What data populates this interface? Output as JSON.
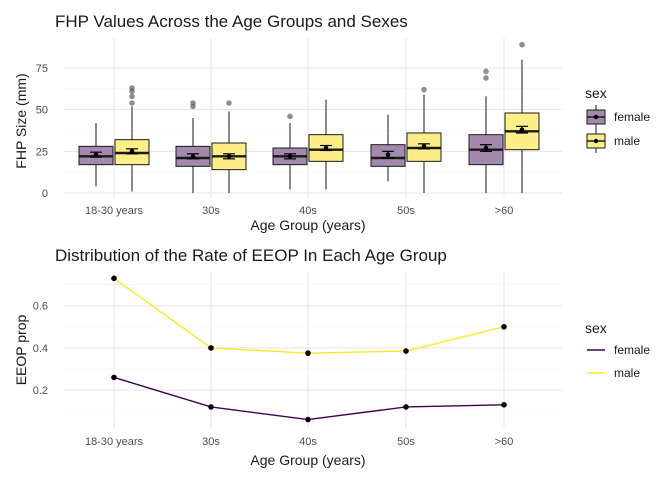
{
  "chart_data": [
    {
      "type": "box",
      "title": "FHP Values Across the Age Groups and Sexes",
      "xlabel": "Age Group (years)",
      "ylabel": "FHP Size (mm)",
      "categories": [
        "18-30 years",
        "30s",
        "40s",
        "50s",
        ">60"
      ],
      "yticks": [
        0,
        25,
        50,
        75
      ],
      "ylim": [
        -3,
        93
      ],
      "legend": {
        "title": "sex",
        "position": "right"
      },
      "series": [
        {
          "name": "female",
          "color": "#a389ae",
          "boxes": [
            {
              "min": 4,
              "q1": 17,
              "median": 22,
              "q3": 28,
              "max": 42,
              "mean": 23,
              "err": 1.5,
              "outliers": []
            },
            {
              "min": 0,
              "q1": 16,
              "median": 21,
              "q3": 28,
              "max": 45,
              "mean": 22,
              "err": 1.5,
              "outliers": [
                52,
                54
              ]
            },
            {
              "min": 2,
              "q1": 17,
              "median": 22,
              "q3": 27,
              "max": 42,
              "mean": 22,
              "err": 1.5,
              "outliers": [
                46
              ]
            },
            {
              "min": 7,
              "q1": 16,
              "median": 21,
              "q3": 29,
              "max": 47,
              "mean": 23,
              "err": 2,
              "outliers": []
            },
            {
              "min": 0,
              "q1": 17,
              "median": 26,
              "q3": 35,
              "max": 58,
              "mean": 27,
              "err": 2,
              "outliers": [
                69,
                73
              ]
            }
          ]
        },
        {
          "name": "male",
          "color": "#fdee88",
          "boxes": [
            {
              "min": 1,
              "q1": 17,
              "median": 24,
              "q3": 32,
              "max": 52,
              "mean": 25,
              "err": 1.5,
              "outliers": [
                54,
                58,
                61,
                63
              ]
            },
            {
              "min": 0,
              "q1": 14,
              "median": 22,
              "q3": 30,
              "max": 49,
              "mean": 22,
              "err": 1.5,
              "outliers": [
                54
              ]
            },
            {
              "min": 2,
              "q1": 19,
              "median": 26,
              "q3": 35,
              "max": 56,
              "mean": 27,
              "err": 1.5,
              "outliers": []
            },
            {
              "min": 0,
              "q1": 19,
              "median": 27,
              "q3": 36,
              "max": 59,
              "mean": 28,
              "err": 1.5,
              "outliers": [
                62
              ]
            },
            {
              "min": 0,
              "q1": 26,
              "median": 37,
              "q3": 48,
              "max": 80,
              "mean": 38,
              "err": 2,
              "outliers": [
                89
              ]
            }
          ]
        }
      ]
    },
    {
      "type": "line",
      "title": "Distribution of the Rate of EEOP In Each Age Group",
      "xlabel": "Age Group (years)",
      "ylabel": "EEOP prop",
      "categories": [
        "18-30 years",
        "30s",
        "40s",
        "50s",
        ">60"
      ],
      "yticks": [
        0.2,
        0.4,
        0.6
      ],
      "ylim": [
        0.02,
        0.76
      ],
      "legend": {
        "title": "sex",
        "position": "right"
      },
      "series": [
        {
          "name": "female",
          "color": "#440154",
          "values": [
            0.26,
            0.12,
            0.06,
            0.12,
            0.13
          ]
        },
        {
          "name": "male",
          "color": "#fde725",
          "values": [
            0.73,
            0.4,
            0.375,
            0.385,
            0.5
          ]
        }
      ]
    }
  ]
}
